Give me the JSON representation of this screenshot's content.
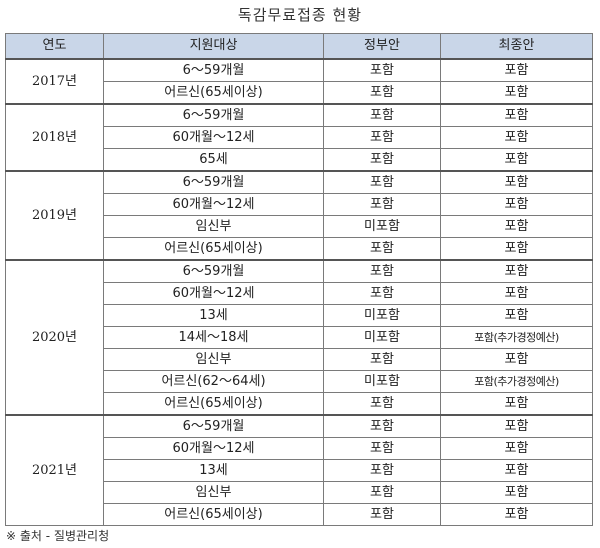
{
  "title": "독감무료접종 현황",
  "table": {
    "headers": [
      "연도",
      "지원대상",
      "정부안",
      "최종안"
    ],
    "groups": [
      {
        "year": "2017년",
        "rows": [
          {
            "target": "6～59개월",
            "gov": "포함",
            "final": "포함"
          },
          {
            "target": "어르신(65세이상)",
            "gov": "포함",
            "final": "포함"
          }
        ]
      },
      {
        "year": "2018년",
        "rows": [
          {
            "target": "6～59개월",
            "gov": "포함",
            "final": "포함"
          },
          {
            "target": "60개월～12세",
            "gov": "포함",
            "final": "포함"
          },
          {
            "target": "65세",
            "gov": "포함",
            "final": "포함"
          }
        ]
      },
      {
        "year": "2019년",
        "rows": [
          {
            "target": "6～59개월",
            "gov": "포함",
            "final": "포함"
          },
          {
            "target": "60개월～12세",
            "gov": "포함",
            "final": "포함"
          },
          {
            "target": "임신부",
            "gov": "미포함",
            "final": "포함"
          },
          {
            "target": "어르신(65세이상)",
            "gov": "포함",
            "final": "포함"
          }
        ]
      },
      {
        "year": "2020년",
        "rows": [
          {
            "target": "6～59개월",
            "gov": "포함",
            "final": "포함"
          },
          {
            "target": "60개월～12세",
            "gov": "포함",
            "final": "포함"
          },
          {
            "target": "13세",
            "gov": "미포함",
            "final": "포함"
          },
          {
            "target": "14세～18세",
            "gov": "미포함",
            "final": "포함(추가경정예산)"
          },
          {
            "target": "임신부",
            "gov": "포함",
            "final": "포함"
          },
          {
            "target": "어르신(62～64세)",
            "gov": "미포함",
            "final": "포함(추가경정예산)"
          },
          {
            "target": "어르신(65세이상)",
            "gov": "포함",
            "final": "포함"
          }
        ]
      },
      {
        "year": "2021년",
        "rows": [
          {
            "target": "6～59개월",
            "gov": "포함",
            "final": "포함"
          },
          {
            "target": "60개월～12세",
            "gov": "포함",
            "final": "포함"
          },
          {
            "target": "13세",
            "gov": "포함",
            "final": "포함"
          },
          {
            "target": "임신부",
            "gov": "포함",
            "final": "포함"
          },
          {
            "target": "어르신(65세이상)",
            "gov": "포함",
            "final": "포함"
          }
        ]
      }
    ]
  },
  "source": "※ 출처 - 질병관리청"
}
